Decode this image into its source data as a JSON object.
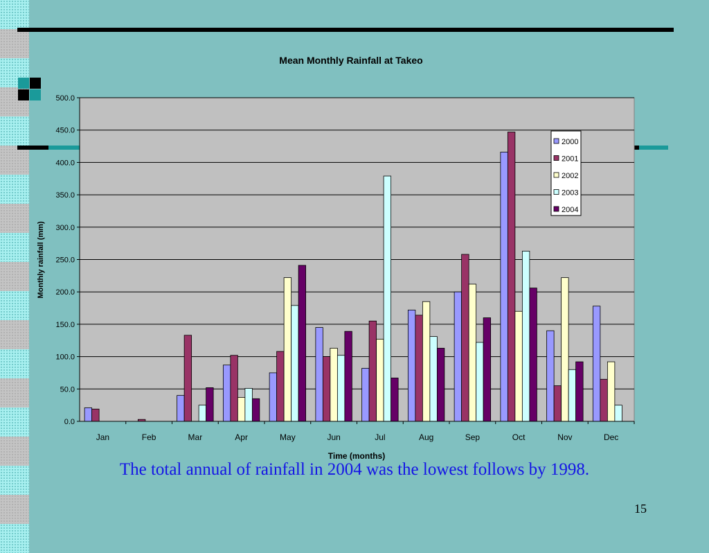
{
  "slide": {
    "caption": "The total annual of rainfall in 2004 was the lowest follows by 1998.",
    "page_number": "15",
    "colors": {
      "background": "#80c0c0",
      "caption": "#1414e6"
    }
  },
  "chart_data": {
    "type": "bar",
    "title": "Mean Monthly Rainfall at Takeo",
    "xlabel": "Time (months)",
    "ylabel": "Monthly rainfall (mm)",
    "ylim": [
      0,
      500
    ],
    "yticks": [
      "0.0",
      "50.0",
      "100.0",
      "150.0",
      "200.0",
      "250.0",
      "300.0",
      "350.0",
      "400.0",
      "450.0",
      "500.0"
    ],
    "categories": [
      "Jan",
      "Feb",
      "Mar",
      "Apr",
      "May",
      "Jun",
      "Jul",
      "Aug",
      "Sep",
      "Oct",
      "Nov",
      "Dec"
    ],
    "grid": true,
    "legend_position": "top-right",
    "series": [
      {
        "name": "2000",
        "color": "#9999ff",
        "values": [
          21,
          0,
          40,
          87,
          75,
          145,
          82,
          172,
          200,
          416,
          140,
          178
        ]
      },
      {
        "name": "2001",
        "color": "#993366",
        "values": [
          19,
          3,
          133,
          102,
          108,
          100,
          155,
          164,
          258,
          447,
          55,
          65
        ]
      },
      {
        "name": "2002",
        "color": "#ffffcc",
        "values": [
          0,
          0,
          0,
          37,
          222,
          113,
          127,
          185,
          212,
          170,
          222,
          92
        ]
      },
      {
        "name": "2003",
        "color": "#ccffff",
        "values": [
          0,
          0,
          25,
          51,
          179,
          102,
          379,
          131,
          122,
          263,
          80,
          25
        ]
      },
      {
        "name": "2004",
        "color": "#660066",
        "values": [
          0,
          0,
          52,
          35,
          241,
          139,
          67,
          113,
          160,
          206,
          92,
          0
        ]
      }
    ]
  }
}
